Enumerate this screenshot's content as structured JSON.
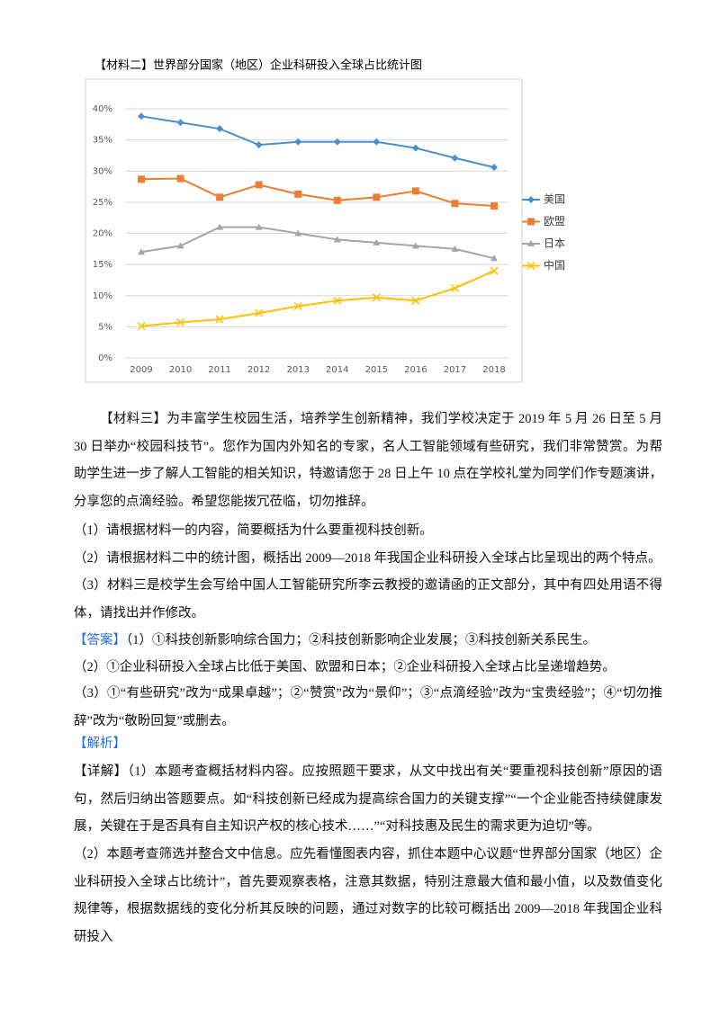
{
  "chart_data": {
    "type": "line",
    "title": "【材料二】世界部分国家（地区）企业科研投入全球占比统计图",
    "categories": [
      "2009",
      "2010",
      "2011",
      "2012",
      "2013",
      "2014",
      "2015",
      "2016",
      "2017",
      "2018"
    ],
    "series": [
      {
        "name": "美国",
        "color": "#4a90d0",
        "marker": "diamond",
        "values": [
          38.8,
          37.8,
          36.8,
          34.2,
          34.7,
          34.7,
          34.7,
          33.7,
          32.1,
          30.6
        ]
      },
      {
        "name": "欧盟",
        "color": "#ed7d31",
        "marker": "square",
        "values": [
          28.7,
          28.8,
          25.8,
          27.8,
          26.3,
          25.3,
          25.8,
          26.8,
          24.8,
          24.4
        ]
      },
      {
        "name": "日本",
        "color": "#a5a5a5",
        "marker": "triangle",
        "values": [
          17.0,
          18.0,
          21.0,
          21.0,
          20.0,
          19.0,
          18.5,
          18.0,
          17.5,
          16.0
        ]
      },
      {
        "name": "中国",
        "color": "#ffc000",
        "marker": "x",
        "values": [
          5.1,
          5.7,
          6.2,
          7.2,
          8.3,
          9.2,
          9.7,
          9.2,
          11.2,
          14.0
        ]
      }
    ],
    "ylim": [
      0,
      40
    ],
    "yticks": [
      {
        "value": 0,
        "label": "0%"
      },
      {
        "value": 5,
        "label": "5%"
      },
      {
        "value": 10,
        "label": "10%"
      },
      {
        "value": 15,
        "label": "15%"
      },
      {
        "value": 20,
        "label": "20%"
      },
      {
        "value": 25,
        "label": "25%"
      },
      {
        "value": 30,
        "label": "30%"
      },
      {
        "value": 35,
        "label": "35%"
      },
      {
        "value": 40,
        "label": "40%"
      }
    ],
    "grid": true,
    "legend": "right"
  },
  "material3": "【材料三】为丰富学生校园生活，培养学生创新精神，我们学校决定于 2019 年 5 月 26 日至 5 月 30 日举办“校园科技节”。您作为国内外知名的专家，名人工智能领域有些研究，我们非常赞赏。为帮助学生进一步了解人工智能的相关知识，特邀请您于 28 日上午 10 点在学校礼堂为同学们作专题演讲，分享您的点滴经验。希望您能拨冗莅临，切勿推辞。",
  "questions": [
    "（1）请根据材料一的内容，简要概括为什么要重视科技创新。",
    "（2）请根据材料二中的统计图，概括出 2009—2018 年我国企业科研投入全球占比呈现出的两个特点。",
    "（3）材料三是校学生会写给中国人工智能研究所李云教授的邀请函的正文部分，其中有四处用语不得体，请找出并作修改。"
  ],
  "answer": {
    "label": "【答案】",
    "lines": [
      "（1）①科技创新影响综合国力；②科技创新影响企业发展；③科技创新关系民生。",
      "（2）①企业科研投入全球占比低于美国、欧盟和日本；②企业科研投入全球占比呈递增趋势。",
      "（3）①“有些研究”改为“成果卓越”；②“赞赏”改为“景仰”；③“点滴经验”改为“宝贵经验”；④“切勿推辞”改为“敬盼回复”或删去。"
    ]
  },
  "analysis": {
    "label": "【解析】"
  },
  "detail": {
    "label": "【详解】",
    "paragraphs": [
      "（1）本题考查概括材料内容。应按照题干要求，从文中找出有关“要重视科技创新”原因的语句，然后归纳出答题要点。如“科技创新已经成为提高综合国力的关键支撑”“一个企业能否持续健康发展，关键在于是否具有自主知识产权的核心技术……”“对科技惠及民生的需求更为迫切”等。",
      "（2）本题考查筛选并整合文中信息。应先看懂图表内容，抓住本题中心议题“世界部分国家（地区）企业科研投入全球占比统计”，首先要观察表格，注意其数据，特别注意最大值和最小值，以及数值变化规律等，根据数据线的变化分析其反映的问题，通过对数字的比较可概括出 2009—2018 年我国企业科研投入"
    ]
  }
}
